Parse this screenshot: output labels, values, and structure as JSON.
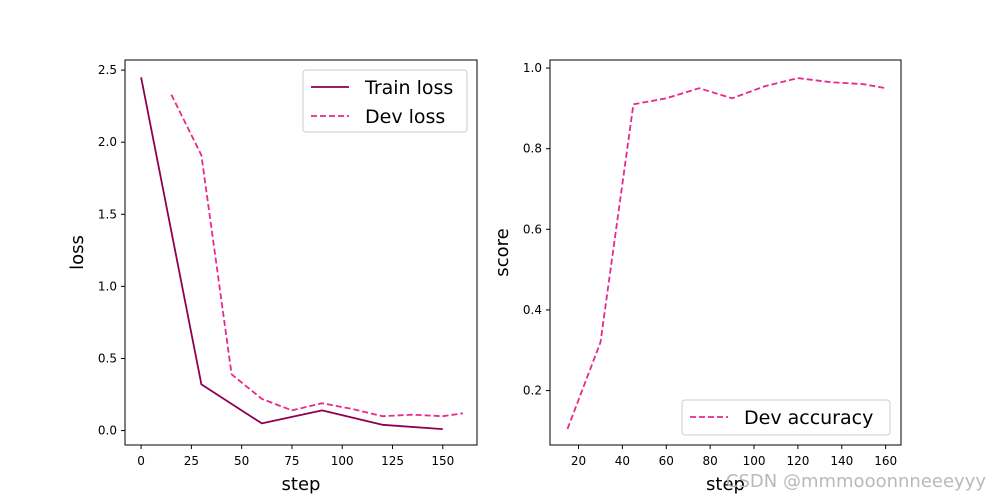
{
  "chart_data": [
    {
      "type": "line",
      "xlabel": "step",
      "ylabel": "loss",
      "xlim": [
        -8,
        167
      ],
      "ylim": [
        -0.1,
        2.57
      ],
      "xticks": [
        0,
        25,
        50,
        75,
        100,
        125,
        150
      ],
      "yticks": [
        0.0,
        0.5,
        1.0,
        1.5,
        2.0,
        2.5
      ],
      "xtick_labels": [
        "0",
        "25",
        "50",
        "75",
        "100",
        "125",
        "150"
      ],
      "ytick_labels": [
        "0.0",
        "0.5",
        "1.0",
        "1.5",
        "2.0",
        "2.5"
      ],
      "legend_position": "top-right",
      "series": [
        {
          "name": "Train loss",
          "style": "solid",
          "color": "#8e0152",
          "x": [
            0,
            30,
            60,
            90,
            120,
            150
          ],
          "y": [
            2.45,
            0.32,
            0.05,
            0.14,
            0.04,
            0.01
          ]
        },
        {
          "name": "Dev loss",
          "style": "dashed",
          "color": "#e7298a",
          "x": [
            15,
            30,
            45,
            60,
            75,
            90,
            105,
            120,
            135,
            150,
            160
          ],
          "y": [
            2.33,
            1.91,
            0.39,
            0.22,
            0.14,
            0.19,
            0.15,
            0.1,
            0.11,
            0.1,
            0.12
          ]
        }
      ]
    },
    {
      "type": "line",
      "xlabel": "step",
      "ylabel": "score",
      "xlim": [
        7,
        167
      ],
      "ylim": [
        0.065,
        1.02
      ],
      "xticks": [
        20,
        40,
        60,
        80,
        100,
        120,
        140,
        160
      ],
      "yticks": [
        0.2,
        0.4,
        0.6,
        0.8,
        1.0
      ],
      "xtick_labels": [
        "20",
        "40",
        "60",
        "80",
        "100",
        "120",
        "140",
        "160"
      ],
      "ytick_labels": [
        "0.2",
        "0.4",
        "0.6",
        "0.8",
        "1.0"
      ],
      "legend_position": "bottom-right",
      "series": [
        {
          "name": "Dev accuracy",
          "style": "dashed",
          "color": "#e7298a",
          "x": [
            15,
            30,
            45,
            60,
            75,
            90,
            105,
            120,
            135,
            150,
            160
          ],
          "y": [
            0.105,
            0.32,
            0.91,
            0.925,
            0.95,
            0.925,
            0.955,
            0.975,
            0.965,
            0.96,
            0.95
          ]
        }
      ]
    }
  ],
  "watermark": "CSDN @mmmooonnneeeyyy"
}
